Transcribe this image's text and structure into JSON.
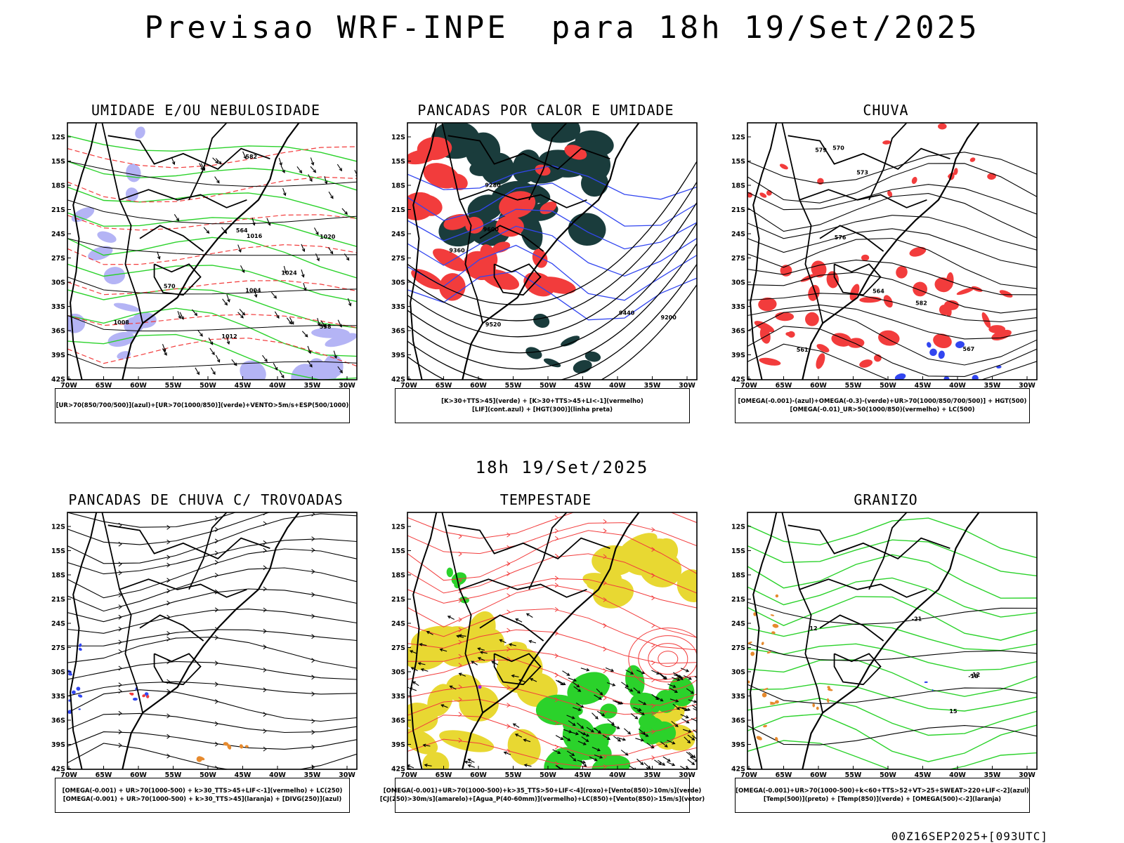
{
  "header": {
    "title": "Previsao WRF-INPE  para 18h 19/Set/2025",
    "mid_title": "18h 19/Set/2025",
    "footer": "00Z16SEP2025+[093UTC]"
  },
  "axes": {
    "lat_labels": [
      "12S",
      "15S",
      "18S",
      "21S",
      "24S",
      "27S",
      "30S",
      "33S",
      "36S",
      "39S",
      "42S"
    ],
    "lon_labels": [
      "70W",
      "65W",
      "60W",
      "55W",
      "50W",
      "45W",
      "40W",
      "35W",
      "30W"
    ]
  },
  "colors": {
    "red": "#f23c3c",
    "green": "#2bd22b",
    "dark_green": "#1a3c3c",
    "blue": "#3246f0",
    "lavender": "#b4b4f5",
    "yellow": "#e8d832",
    "orange": "#e68a2e",
    "purple": "#a020f0",
    "black": "#000000"
  },
  "panels": [
    {
      "title": "UMIDADE E/OU NEBULOSIDADE",
      "legend": [
        "[UR>70(850/700/500)](azul)+[UR>70(1000/850)](verde)+VENTO>5m/s+ESP(500/1000)"
      ],
      "contour_labels": [
        "1004",
        "1008",
        "1012",
        "1016",
        "1020",
        "1024",
        "582",
        "570",
        "564",
        "558"
      ]
    },
    {
      "title": "PANCADAS POR CALOR E UMIDADE",
      "legend": [
        "[K>30+TTS>45](verde) + [K>30+TTS>45+LI<-1](vermelho)",
        "[LIF](cont.azul) + [HGT(300)](linha preta)"
      ],
      "contour_labels": [
        "9600",
        "9520",
        "9440",
        "9360",
        "9280",
        "9200"
      ]
    },
    {
      "title": "CHUVA",
      "legend": [
        "[OMEGA(-0.001)-(azul)+OMEGA(-0.3)-(verde)+UR>70(1000/850/700/500)] + HGT(500)",
        "[OMEGA(-0.01)_UR>50(1000/850)(vermelho) + LC(500)"
      ],
      "contour_labels": [
        "582",
        "579",
        "576",
        "573",
        "570",
        "567",
        "564",
        "561"
      ]
    },
    {
      "title": "PANCADAS DE CHUVA C/ TROVOADAS",
      "legend": [
        "[OMEGA(-0.001) + UR>70(1000-500) + k>30_TTS>45+LIF<-1](vermelho) + LC(250)",
        "[OMEGA(-0.001) + UR>70(1000-500) + k>30_TTS>45](laranja) + [DIVG(250)](azul)"
      ],
      "contour_labels": []
    },
    {
      "title": "TEMPESTADE",
      "legend": [
        "[OMEGA(-0.001)+UR>70(1000-500)+k>35_TTS>50+LIF<-4](roxo)+[Vento(850)>10m/s](verde)",
        "[CJ(250)>30m/s](amarelo)+[Agua_P(40-60mm)](vermelho)+LC(850)+[Vento(850)>15m/s](vetor)"
      ],
      "contour_labels": []
    },
    {
      "title": "GRANIZO",
      "legend": [
        "[OMEGA(-0.001)+UR>70(1000-500)+k<60+TTS>52+VT>25+SWEAT>220+LIF<-2](azul)",
        "[Temp(500)](preto) + [Temp(850)](verde) + [OMEGA(500)<-2](laranja)"
      ],
      "contour_labels": [
        "-12",
        "-18",
        "-21",
        "15",
        "12"
      ]
    }
  ]
}
